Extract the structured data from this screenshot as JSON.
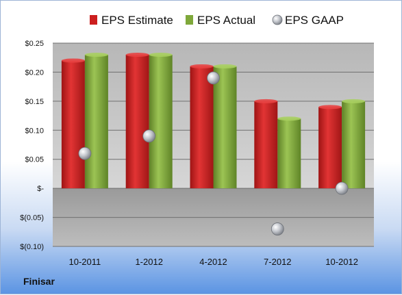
{
  "company": "Finisar",
  "chart_data": {
    "type": "bar",
    "categories": [
      "10-2011",
      "1-2012",
      "4-2012",
      "7-2012",
      "10-2012"
    ],
    "series": [
      {
        "name": "EPS Estimate",
        "type": "bar",
        "color": "#cc1f1f",
        "values": [
          0.22,
          0.23,
          0.21,
          0.15,
          0.14
        ]
      },
      {
        "name": "EPS Actual",
        "type": "bar",
        "color": "#7fa83a",
        "values": [
          0.23,
          0.23,
          0.21,
          0.12,
          0.15
        ]
      },
      {
        "name": "EPS GAAP",
        "type": "scatter",
        "color": "#b8bcc4",
        "values": [
          0.06,
          0.09,
          0.19,
          -0.07,
          0.0
        ]
      }
    ],
    "ylim": [
      -0.1,
      0.25
    ],
    "yticks": [
      0.25,
      0.2,
      0.15,
      0.1,
      0.05,
      0,
      -0.05,
      -0.1
    ],
    "ytick_labels": [
      "$0.25",
      "$0.20",
      "$0.15",
      "$0.10",
      "$0.05",
      "$-",
      "$(0.05)",
      "$(0.10)"
    ],
    "grid": true,
    "legend": "top"
  }
}
